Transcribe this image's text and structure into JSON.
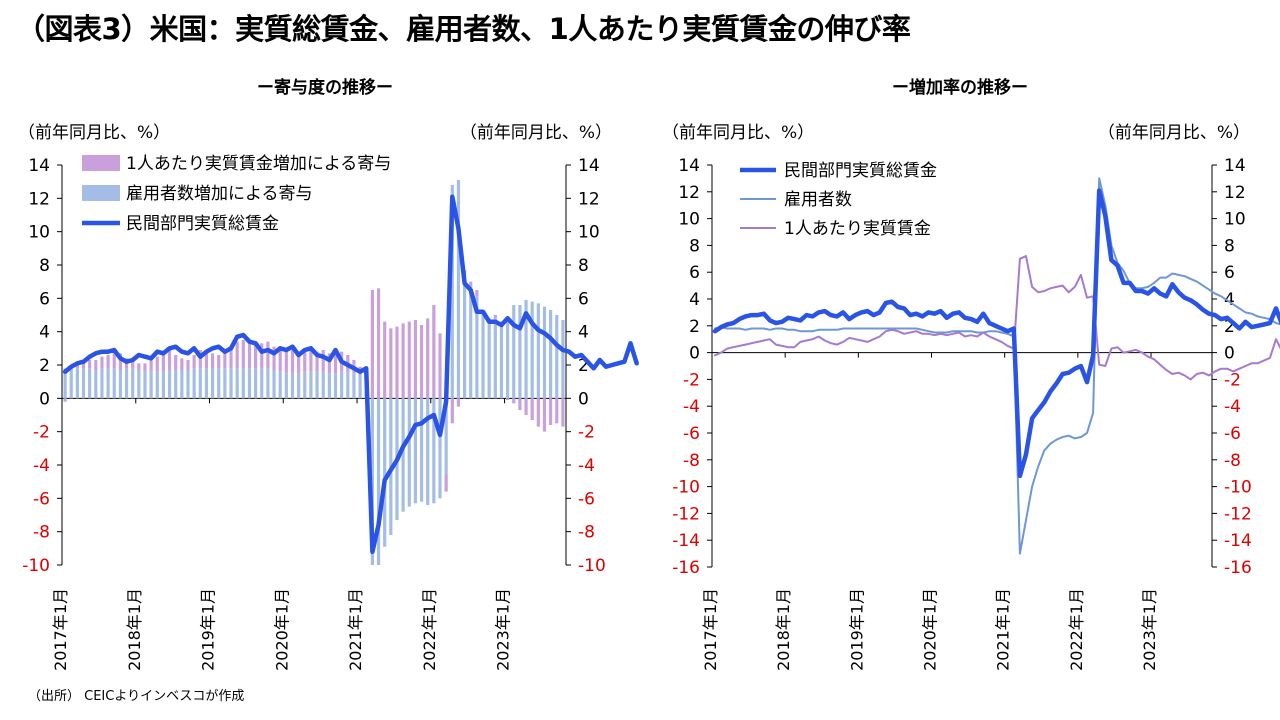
{
  "title": "（図表3）米国：実質総賃金、雇用者数、1人あたり実質賃金の伸び率",
  "source": "（出所） CEICよりインベスコが作成",
  "colors": {
    "wage_bar": "#c9a0dc",
    "emp_bar": "#a3bde6",
    "total_line": "#2a54e6",
    "emp_line": "#6e97d6",
    "wage_line": "#a67ad0",
    "neg_tick": "#e00000"
  },
  "chart_data": [
    {
      "type": "bar",
      "title": "ー寄与度の推移ー",
      "ylabel_left": "（前年同月比、%）",
      "ylabel_right": "（前年同月比、%）",
      "ylim": [
        -10,
        14
      ],
      "yticks": [
        14,
        12,
        10,
        8,
        6,
        4,
        2,
        0,
        -2,
        -4,
        -6,
        -8,
        -10
      ],
      "xtick_labels": [
        "2017年1月",
        "2018年1月",
        "2019年1月",
        "2020年1月",
        "2021年1月",
        "2022年1月",
        "2023年1月"
      ],
      "x_start": "2017-01",
      "x_end": "2023-10",
      "legend": [
        "1人あたり実質賃金増加による寄与",
        "雇用者数増加による寄与",
        "民間部門実質総賃金"
      ],
      "series": [
        {
          "name": "1人あたり実質賃金増加による寄与",
          "kind": "bar_stacked",
          "values": [
            -0.2,
            0,
            0.3,
            0.4,
            0.5,
            0.6,
            0.7,
            0.8,
            0.9,
            1,
            0.6,
            0.5,
            0.4,
            0.4,
            0.8,
            0.9,
            1,
            1.2,
            0.9,
            0.7,
            0.6,
            0.8,
            1.1,
            1,
            0.9,
            0.8,
            1,
            1.2,
            1.6,
            1.7,
            1.6,
            1.4,
            1.5,
            1.6,
            1.4,
            1.4,
            1.3,
            1.4,
            1.3,
            1.4,
            1.5,
            1.2,
            1.3,
            1.2,
            1.5,
            1.2,
            1,
            0.8,
            0.5,
            0.3,
            6.5,
            6.6,
            4.6,
            4.2,
            4.3,
            4.5,
            4.6,
            4.7,
            4.4,
            4.8,
            5.6,
            3.9,
            -1.1,
            -1.5,
            -0.5,
            0,
            0.3,
            0.4,
            0,
            0,
            0.2,
            0.1,
            -0.1,
            -0.3,
            -0.7,
            -1,
            -1.3,
            -1.7,
            -2,
            -1.6,
            -1.5,
            -1.7,
            -1.4,
            -1.2,
            -1.2,
            -1.4,
            -1.2,
            -1,
            -0.8,
            -0.8,
            -0.6,
            -0.4,
            -0.3,
            -0.2
          ]
        },
        {
          "name": "雇用者数増加による寄与",
          "kind": "bar_stacked",
          "values": [
            1.8,
            1.9,
            1.8,
            1.8,
            1.8,
            1.7,
            1.8,
            1.8,
            1.8,
            1.7,
            1.8,
            1.8,
            1.7,
            1.7,
            1.6,
            1.6,
            1.6,
            1.7,
            1.7,
            1.7,
            1.7,
            1.8,
            1.8,
            1.8,
            1.8,
            1.8,
            1.8,
            1.8,
            1.8,
            1.8,
            1.8,
            1.8,
            1.8,
            1.8,
            1.7,
            1.6,
            1.5,
            1.5,
            1.5,
            1.6,
            1.6,
            1.6,
            1.6,
            1.5,
            1.5,
            1.6,
            1.6,
            1.5,
            1.4,
            1.2,
            -10.2,
            -10.1,
            -8.9,
            -8.2,
            -7.3,
            -6.8,
            -6.5,
            -6.3,
            -6.2,
            -6.4,
            -6.3,
            -6,
            -4.5,
            12.8,
            13.1,
            7.7,
            6.7,
            6.1,
            5.2,
            4.8,
            4.8,
            4.5,
            4.9,
            5.6,
            5.6,
            5.9,
            5.8,
            5.7,
            5.5,
            5.3,
            5,
            4.7,
            4.4,
            4.2,
            3.9,
            3.6,
            3.3,
            3,
            2.9,
            2.7,
            2.6,
            2.5,
            2.2,
            2.1
          ]
        },
        {
          "name": "民間部門実質総賃金",
          "kind": "line",
          "values": [
            1.6,
            1.9,
            2.1,
            2.2,
            2.5,
            2.7,
            2.8,
            2.8,
            2.9,
            2.4,
            2.2,
            2.3,
            2.6,
            2.5,
            2.4,
            2.8,
            2.7,
            3,
            3.1,
            2.8,
            2.7,
            3,
            2.5,
            2.8,
            3,
            3.1,
            2.8,
            3,
            3.7,
            3.8,
            3.4,
            3.3,
            2.8,
            2.9,
            2.7,
            3,
            2.9,
            3.1,
            2.6,
            2.9,
            3,
            2.6,
            2.5,
            2.3,
            2.9,
            2.2,
            2,
            1.8,
            1.6,
            1.8,
            -9.2,
            -7.6,
            -4.9,
            -4.3,
            -3.7,
            -2.9,
            -2.3,
            -1.6,
            -1.5,
            -1.2,
            -1,
            -2.2,
            -0.2,
            12.1,
            10.2,
            6.9,
            6.5,
            5.2,
            5.2,
            4.6,
            4.6,
            4.4,
            4.8,
            4.4,
            4.2,
            5.1,
            4.5,
            4.1,
            3.9,
            3.6,
            3.2,
            2.9,
            2.8,
            2.5,
            2.6,
            2.2,
            1.8,
            2.3,
            1.9,
            2,
            2.1,
            2.2,
            3.3,
            2.1
          ]
        }
      ]
    },
    {
      "type": "line",
      "title": "ー増加率の推移ー",
      "ylabel_left": "（前年同月比、%）",
      "ylabel_right": "（前年同月比、%）",
      "ylim": [
        -16,
        14
      ],
      "yticks": [
        14,
        12,
        10,
        8,
        6,
        4,
        2,
        0,
        -2,
        -4,
        -6,
        -8,
        -10,
        -12,
        -14,
        -16
      ],
      "xtick_labels": [
        "2017年1月",
        "2018年1月",
        "2019年1月",
        "2020年1月",
        "2021年1月",
        "2022年1月",
        "2023年1月"
      ],
      "x_start": "2017-01",
      "x_end": "2023-10",
      "legend": [
        "民間部門実質総賃金",
        "雇用者数",
        "1人あたり実質賃金"
      ],
      "series": [
        {
          "name": "民間部門実質総賃金",
          "kind": "line_thick",
          "values": [
            1.6,
            1.9,
            2.1,
            2.2,
            2.5,
            2.7,
            2.8,
            2.8,
            2.9,
            2.4,
            2.2,
            2.3,
            2.6,
            2.5,
            2.4,
            2.8,
            2.7,
            3,
            3.1,
            2.8,
            2.7,
            3,
            2.5,
            2.8,
            3,
            3.1,
            2.8,
            3,
            3.7,
            3.8,
            3.4,
            3.3,
            2.8,
            2.9,
            2.7,
            3,
            2.9,
            3.1,
            2.6,
            2.9,
            3,
            2.6,
            2.5,
            2.3,
            2.9,
            2.2,
            2,
            1.8,
            1.6,
            1.8,
            -9.2,
            -7.6,
            -4.9,
            -4.3,
            -3.7,
            -2.9,
            -2.3,
            -1.6,
            -1.5,
            -1.2,
            -1,
            -2.2,
            -0.2,
            12.1,
            10.2,
            6.9,
            6.5,
            5.2,
            5.2,
            4.6,
            4.6,
            4.4,
            4.8,
            4.4,
            4.2,
            5.1,
            4.5,
            4.1,
            3.9,
            3.6,
            3.2,
            2.9,
            2.8,
            2.5,
            2.6,
            2.2,
            1.8,
            2.3,
            1.9,
            2,
            2.1,
            2.2,
            3.3,
            2.1
          ]
        },
        {
          "name": "雇用者数",
          "kind": "line",
          "values": [
            1.8,
            1.9,
            1.8,
            1.8,
            1.8,
            1.7,
            1.8,
            1.8,
            1.8,
            1.7,
            1.8,
            1.8,
            1.7,
            1.7,
            1.6,
            1.6,
            1.6,
            1.7,
            1.7,
            1.7,
            1.7,
            1.8,
            1.8,
            1.8,
            1.8,
            1.8,
            1.8,
            1.8,
            1.8,
            1.8,
            1.8,
            1.8,
            1.8,
            1.8,
            1.7,
            1.6,
            1.5,
            1.5,
            1.5,
            1.6,
            1.6,
            1.6,
            1.6,
            1.5,
            1.5,
            1.6,
            1.6,
            1.5,
            1.4,
            1.2,
            -15,
            -12.5,
            -10,
            -8.5,
            -7.3,
            -6.8,
            -6.5,
            -6.3,
            -6.2,
            -6.4,
            -6.3,
            -6,
            -4.5,
            13,
            11,
            8,
            6.7,
            6.1,
            5.2,
            4.8,
            4.8,
            4.9,
            5.2,
            5.6,
            5.6,
            5.9,
            5.8,
            5.7,
            5.5,
            5.3,
            5,
            4.7,
            4.4,
            4.2,
            3.9,
            3.6,
            3.3,
            3,
            2.9,
            2.7,
            2.6,
            2.5,
            2.2,
            2.1
          ]
        },
        {
          "name": "1人あたり実質賃金",
          "kind": "line",
          "values": [
            -0.2,
            0,
            0.3,
            0.4,
            0.5,
            0.6,
            0.7,
            0.8,
            0.9,
            1,
            0.6,
            0.5,
            0.4,
            0.4,
            0.8,
            0.9,
            1,
            1.2,
            0.9,
            0.7,
            0.6,
            0.8,
            1.1,
            1,
            0.9,
            0.8,
            1,
            1.2,
            1.6,
            1.7,
            1.6,
            1.4,
            1.5,
            1.6,
            1.4,
            1.4,
            1.3,
            1.4,
            1.3,
            1.4,
            1.5,
            1.2,
            1.3,
            1.2,
            1.5,
            1.2,
            1,
            0.8,
            0.5,
            0.3,
            7,
            7.2,
            4.9,
            4.5,
            4.6,
            4.8,
            4.9,
            5,
            4.5,
            4.9,
            5.8,
            4.1,
            4.2,
            -0.9,
            -1,
            0.3,
            0.4,
            0,
            0.1,
            0.2,
            0,
            -0.3,
            -0.5,
            -0.9,
            -1.3,
            -1.6,
            -1.5,
            -1.7,
            -2,
            -1.6,
            -1.5,
            -1.7,
            -1.4,
            -1.2,
            -1.2,
            -1.4,
            -1.2,
            -1,
            -0.8,
            -0.8,
            -0.6,
            -0.4,
            1,
            0.1
          ]
        }
      ]
    }
  ]
}
